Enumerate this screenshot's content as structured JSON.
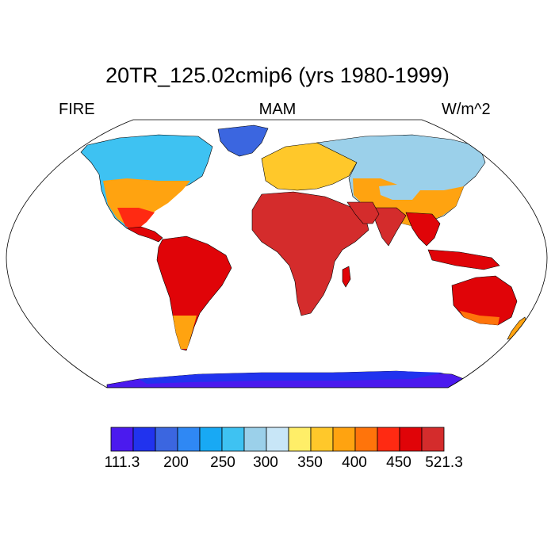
{
  "title": "20TR_125.02cmip6 (yrs 1980-1999)",
  "left_string": "FIRE",
  "center_string": "MAM",
  "right_string": "W/m^2",
  "projection": "Robinson",
  "colorbar": {
    "colors": [
      "#4b1aee",
      "#2133ee",
      "#3b66e0",
      "#2f88f4",
      "#18a9f4",
      "#3ec2f2",
      "#9bd0ea",
      "#c8e6f7",
      "#ffee68",
      "#ffc82a",
      "#ffa310",
      "#ff740b",
      "#ff2a12",
      "#e00408",
      "#d42c2c"
    ],
    "labels": [
      {
        "text": "111.3",
        "index": 0
      },
      {
        "text": "200",
        "index": 2
      },
      {
        "text": "250",
        "index": 3
      },
      {
        "text": "300",
        "index": 4
      },
      {
        "text": "350",
        "index": 5
      },
      {
        "text": "400",
        "index": 6
      },
      {
        "text": "450",
        "index": 7
      },
      {
        "text": "521.3",
        "index": 8
      }
    ]
  }
}
